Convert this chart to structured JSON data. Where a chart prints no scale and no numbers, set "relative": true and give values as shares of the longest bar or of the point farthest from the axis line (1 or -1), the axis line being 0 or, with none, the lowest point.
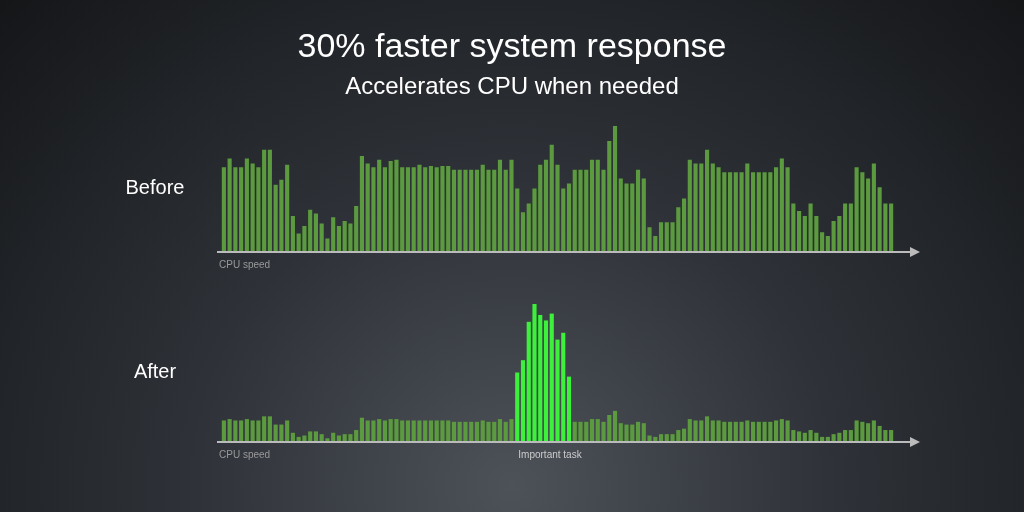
{
  "chart_data": [
    {
      "type": "bar",
      "title": "30% faster system response",
      "subtitle": "Accelerates CPU when needed",
      "ylabel": "Before",
      "xlabel": "CPU speed",
      "relative": true,
      "legend": false,
      "tick_labels": false,
      "color": "#5b9a3e",
      "categories": [
        null,
        null,
        null,
        null,
        null,
        null,
        null,
        null,
        null,
        null,
        null,
        null,
        null,
        null,
        null,
        null,
        null,
        null,
        null,
        null,
        null,
        null,
        null,
        null,
        null,
        null,
        null,
        null,
        null,
        null,
        null,
        null,
        null,
        null,
        null,
        null,
        null,
        null,
        null,
        null,
        null,
        null,
        null,
        null,
        null,
        null,
        null,
        null,
        null,
        null,
        null,
        null,
        null,
        null,
        null,
        null,
        null,
        null,
        null,
        null,
        null,
        null,
        null,
        null,
        null,
        null,
        null,
        null,
        null,
        null,
        null,
        null,
        null,
        null,
        null,
        null,
        null,
        null,
        null,
        null,
        null,
        null,
        null,
        null,
        null,
        null,
        null,
        null,
        null,
        null,
        null,
        null,
        null,
        null,
        null,
        null,
        null,
        null,
        null,
        null,
        null,
        null,
        null,
        null,
        null,
        null,
        null,
        null,
        null,
        null,
        null,
        null,
        null,
        null,
        null,
        null,
        null
      ],
      "values": [
        0.67,
        0.74,
        0.67,
        0.67,
        0.74,
        0.7,
        0.67,
        0.81,
        0.81,
        0.53,
        0.57,
        0.69,
        0.28,
        0.14,
        0.2,
        0.33,
        0.3,
        0.22,
        0.1,
        0.27,
        0.2,
        0.24,
        0.22,
        0.36,
        0.76,
        0.7,
        0.67,
        0.73,
        0.67,
        0.72,
        0.73,
        0.67,
        0.67,
        0.67,
        0.69,
        0.67,
        0.68,
        0.67,
        0.68,
        0.68,
        0.65,
        0.65,
        0.65,
        0.65,
        0.65,
        0.69,
        0.65,
        0.65,
        0.73,
        0.65,
        0.73,
        0.5,
        0.31,
        0.38,
        0.5,
        0.69,
        0.73,
        0.85,
        0.69,
        0.5,
        0.54,
        0.65,
        0.65,
        0.65,
        0.73,
        0.73,
        0.65,
        0.88,
        1,
        0.58,
        0.54,
        0.54,
        0.65,
        0.58,
        0.19,
        0.12,
        0.23,
        0.23,
        0.23,
        0.35,
        0.42,
        0.73,
        0.7,
        0.7,
        0.81,
        0.7,
        0.67,
        0.63,
        0.63,
        0.63,
        0.63,
        0.7,
        0.63,
        0.63,
        0.63,
        0.63,
        0.67,
        0.74,
        0.67,
        0.38,
        0.32,
        0.28,
        0.38,
        0.28,
        0.15,
        0.12,
        0.24,
        0.28,
        0.38,
        0.38,
        0.67,
        0.63,
        0.58,
        0.7,
        0.51,
        0.38,
        0.38
      ]
    },
    {
      "type": "bar",
      "ylabel": "After",
      "xlabel": "CPU speed",
      "annotations": [
        "Important task"
      ],
      "relative": true,
      "legend": false,
      "tick_labels": false,
      "categories": [
        null,
        null,
        null,
        null,
        null,
        null,
        null,
        null,
        null,
        null,
        null,
        null,
        null,
        null,
        null,
        null,
        null,
        null,
        null,
        null,
        null,
        null,
        null,
        null,
        null,
        null,
        null,
        null,
        null,
        null,
        null,
        null,
        null,
        null,
        null,
        null,
        null,
        null,
        null,
        null,
        null,
        null,
        null,
        null,
        null,
        null,
        null,
        null,
        null,
        null,
        null,
        null,
        null,
        null,
        null,
        null,
        null,
        null,
        null,
        null,
        null,
        null,
        null,
        null,
        null,
        null,
        null,
        null,
        null,
        null,
        null,
        null,
        null,
        null,
        null,
        null,
        null,
        null,
        null,
        null,
        null,
        null,
        null,
        null,
        null,
        null,
        null,
        null,
        null,
        null,
        null,
        null,
        null,
        null,
        null,
        null,
        null,
        null,
        null,
        null,
        null,
        null,
        null,
        null,
        null,
        null,
        null,
        null,
        null,
        null,
        null,
        null,
        null,
        null,
        null,
        null,
        null
      ],
      "values": [
        0.15,
        0.16,
        0.15,
        0.15,
        0.16,
        0.15,
        0.15,
        0.18,
        0.18,
        0.12,
        0.12,
        0.15,
        0.06,
        0.03,
        0.04,
        0.07,
        0.07,
        0.05,
        0.02,
        0.06,
        0.04,
        0.05,
        0.05,
        0.08,
        0.17,
        0.15,
        0.15,
        0.16,
        0.15,
        0.16,
        0.16,
        0.15,
        0.15,
        0.15,
        0.15,
        0.15,
        0.15,
        0.15,
        0.15,
        0.15,
        0.14,
        0.14,
        0.14,
        0.14,
        0.14,
        0.15,
        0.14,
        0.14,
        0.16,
        0.14,
        0.16,
        0.5,
        0.59,
        0.87,
        1,
        0.92,
        0.88,
        0.93,
        0.74,
        0.79,
        0.47,
        0.14,
        0.14,
        0.14,
        0.16,
        0.16,
        0.14,
        0.19,
        0.22,
        0.13,
        0.12,
        0.12,
        0.14,
        0.13,
        0.04,
        0.03,
        0.05,
        0.05,
        0.05,
        0.08,
        0.09,
        0.16,
        0.15,
        0.15,
        0.18,
        0.15,
        0.15,
        0.14,
        0.14,
        0.14,
        0.14,
        0.15,
        0.14,
        0.14,
        0.14,
        0.14,
        0.15,
        0.16,
        0.15,
        0.08,
        0.07,
        0.06,
        0.08,
        0.06,
        0.03,
        0.03,
        0.05,
        0.06,
        0.08,
        0.08,
        0.15,
        0.14,
        0.13,
        0.15,
        0.11,
        0.08,
        0.08
      ],
      "colors": [
        "#5b9a3e",
        "#5b9a3e",
        "#5b9a3e",
        "#5b9a3e",
        "#5b9a3e",
        "#5b9a3e",
        "#5b9a3e",
        "#5b9a3e",
        "#5b9a3e",
        "#5b9a3e",
        "#5b9a3e",
        "#5b9a3e",
        "#5b9a3e",
        "#5b9a3e",
        "#5b9a3e",
        "#5b9a3e",
        "#5b9a3e",
        "#5b9a3e",
        "#5b9a3e",
        "#5b9a3e",
        "#5b9a3e",
        "#5b9a3e",
        "#5b9a3e",
        "#5b9a3e",
        "#5b9a3e",
        "#5b9a3e",
        "#5b9a3e",
        "#5b9a3e",
        "#5b9a3e",
        "#5b9a3e",
        "#5b9a3e",
        "#5b9a3e",
        "#5b9a3e",
        "#5b9a3e",
        "#5b9a3e",
        "#5b9a3e",
        "#5b9a3e",
        "#5b9a3e",
        "#5b9a3e",
        "#5b9a3e",
        "#5b9a3e",
        "#5b9a3e",
        "#5b9a3e",
        "#5b9a3e",
        "#5b9a3e",
        "#5b9a3e",
        "#5b9a3e",
        "#5b9a3e",
        "#5b9a3e",
        "#5b9a3e",
        "#5b9a3e",
        "#3cf03c",
        "#3cf03c",
        "#3cf03c",
        "#3cf03c",
        "#3cf03c",
        "#3cf03c",
        "#3cf03c",
        "#3cf03c",
        "#3cf03c",
        "#3cf03c",
        "#5b9a3e",
        "#5b9a3e",
        "#5b9a3e",
        "#5b9a3e",
        "#5b9a3e",
        "#5b9a3e",
        "#5b9a3e",
        "#5b9a3e",
        "#5b9a3e",
        "#5b9a3e",
        "#5b9a3e",
        "#5b9a3e",
        "#5b9a3e",
        "#5b9a3e",
        "#5b9a3e",
        "#5b9a3e",
        "#5b9a3e",
        "#5b9a3e",
        "#5b9a3e",
        "#5b9a3e",
        "#5b9a3e",
        "#5b9a3e",
        "#5b9a3e",
        "#5b9a3e",
        "#5b9a3e",
        "#5b9a3e",
        "#5b9a3e",
        "#5b9a3e",
        "#5b9a3e",
        "#5b9a3e",
        "#5b9a3e",
        "#5b9a3e",
        "#5b9a3e",
        "#5b9a3e",
        "#5b9a3e",
        "#5b9a3e",
        "#5b9a3e",
        "#5b9a3e",
        "#5b9a3e",
        "#5b9a3e",
        "#5b9a3e",
        "#5b9a3e",
        "#5b9a3e",
        "#5b9a3e",
        "#5b9a3e",
        "#5b9a3e",
        "#5b9a3e",
        "#5b9a3e",
        "#5b9a3e",
        "#5b9a3e",
        "#5b9a3e",
        "#5b9a3e",
        "#5b9a3e",
        "#5b9a3e",
        "#5b9a3e",
        "#5b9a3e"
      ]
    }
  ]
}
